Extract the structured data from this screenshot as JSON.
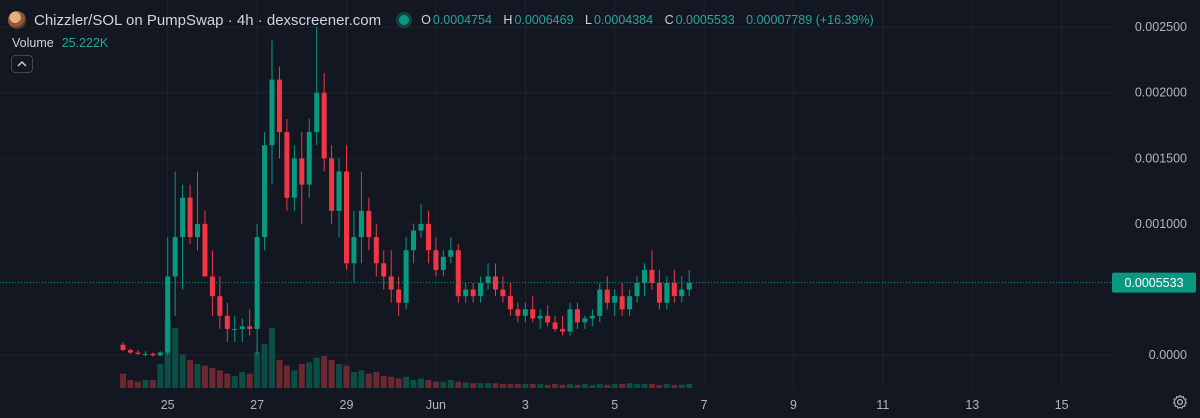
{
  "header": {
    "symbol_line": "Chizzler/SOL on PumpSwap · 4h · dexscreener.com",
    "ohlc": {
      "o_label": "O",
      "o_value": "0.0004754",
      "h_label": "H",
      "h_value": "0.0006469",
      "l_label": "L",
      "l_value": "0.0004384",
      "c_label": "C",
      "c_value": "0.0005533",
      "change": "0.00007789 (+16.39%)"
    },
    "volume_label": "Volume",
    "volume_value": "25.222K"
  },
  "price_tag": "0.0005533",
  "colors": {
    "background": "#131722",
    "up": "#089981",
    "down": "#f23645",
    "up_volume": "#0b4e45",
    "down_volume": "#6b2831",
    "text": "#b2b5be"
  },
  "chart_data": {
    "type": "candlestick",
    "y_ticks": [
      "0.002500",
      "0.002000",
      "0.001500",
      "0.001000",
      "0.0000"
    ],
    "y_tick_values": [
      0.0025,
      0.002,
      0.0015,
      0.001,
      0.0
    ],
    "ylim": [
      -0.00025,
      0.0026
    ],
    "x_ticks": [
      "25",
      "27",
      "29",
      "Jun",
      "3",
      "5",
      "7",
      "9",
      "11",
      "13",
      "15"
    ],
    "x_tick_index": [
      6,
      18,
      30,
      42,
      54,
      66,
      78,
      90,
      102,
      114,
      126
    ],
    "last_close": 0.0005533,
    "candles": [
      [
        8e-05,
        0.0001,
        3e-05,
        4e-05
      ],
      [
        4e-05,
        5e-05,
        1e-05,
        2e-05
      ],
      [
        2e-05,
        4e-05,
        0.0,
        1e-05
      ],
      [
        1e-05,
        3e-05,
        -1e-05,
        1e-05
      ],
      [
        1e-05,
        2e-05,
        -1e-05,
        0.0
      ],
      [
        0.0,
        3e-05,
        -1e-05,
        2e-05
      ],
      [
        2e-05,
        0.0009,
        0.0,
        0.0006
      ],
      [
        0.0006,
        0.0014,
        0.0003,
        0.0009
      ],
      [
        0.0009,
        0.0013,
        0.0005,
        0.0012
      ],
      [
        0.0012,
        0.0013,
        0.00085,
        0.0009
      ],
      [
        0.0009,
        0.0014,
        0.0008,
        0.001
      ],
      [
        0.001,
        0.0011,
        0.0006,
        0.0006
      ],
      [
        0.0006,
        0.0008,
        0.0003,
        0.00045
      ],
      [
        0.00045,
        0.0006,
        0.0002,
        0.0003
      ],
      [
        0.0003,
        0.0004,
        0.0001,
        0.0002
      ],
      [
        0.0002,
        0.0003,
        0.0001,
        0.0002
      ],
      [
        0.0002,
        0.00028,
        0.0001,
        0.00022
      ],
      [
        0.00022,
        0.00035,
        0.00015,
        0.0002
      ],
      [
        0.0002,
        0.001,
        0.0,
        0.0009
      ],
      [
        0.0009,
        0.0017,
        0.0008,
        0.0016
      ],
      [
        0.0016,
        0.0024,
        0.0013,
        0.0021
      ],
      [
        0.0021,
        0.0022,
        0.0015,
        0.0017
      ],
      [
        0.0017,
        0.0018,
        0.0011,
        0.0012
      ],
      [
        0.0012,
        0.0016,
        0.0011,
        0.0015
      ],
      [
        0.0015,
        0.0017,
        0.001,
        0.0013
      ],
      [
        0.0013,
        0.0018,
        0.0012,
        0.0017
      ],
      [
        0.0017,
        0.0025,
        0.0016,
        0.002
      ],
      [
        0.002,
        0.00215,
        0.0014,
        0.0015
      ],
      [
        0.0015,
        0.0016,
        0.001,
        0.0011
      ],
      [
        0.0011,
        0.0015,
        0.0009,
        0.0014
      ],
      [
        0.0014,
        0.0016,
        0.00065,
        0.0007
      ],
      [
        0.0007,
        0.0011,
        0.00055,
        0.0009
      ],
      [
        0.0009,
        0.0014,
        0.0007,
        0.0011
      ],
      [
        0.0011,
        0.0012,
        0.0008,
        0.0009
      ],
      [
        0.0009,
        0.001,
        0.0006,
        0.0007
      ],
      [
        0.0007,
        0.0008,
        0.0005,
        0.0006
      ],
      [
        0.0006,
        0.0008,
        0.0004,
        0.0005
      ],
      [
        0.0005,
        0.0006,
        0.0003,
        0.0004
      ],
      [
        0.0004,
        0.0009,
        0.00035,
        0.0008
      ],
      [
        0.0008,
        0.001,
        0.0007,
        0.00095
      ],
      [
        0.00095,
        0.00115,
        0.0009,
        0.001
      ],
      [
        0.001,
        0.0011,
        0.0007,
        0.0008
      ],
      [
        0.0008,
        0.0009,
        0.0006,
        0.00065
      ],
      [
        0.00065,
        0.0008,
        0.0006,
        0.00075
      ],
      [
        0.00075,
        0.0009,
        0.0007,
        0.0008
      ],
      [
        0.0008,
        0.00085,
        0.0004,
        0.00045
      ],
      [
        0.00045,
        0.00055,
        0.0004,
        0.0005
      ],
      [
        0.0005,
        0.00055,
        0.0004,
        0.00045
      ],
      [
        0.00045,
        0.0006,
        0.0004,
        0.00055
      ],
      [
        0.00055,
        0.0007,
        0.0005,
        0.0006
      ],
      [
        0.0006,
        0.0007,
        0.00045,
        0.0005
      ],
      [
        0.0005,
        0.0006,
        0.0004,
        0.00045
      ],
      [
        0.00045,
        0.00055,
        0.0003,
        0.00035
      ],
      [
        0.00035,
        0.0004,
        0.00025,
        0.0003
      ],
      [
        0.0003,
        0.0004,
        0.00025,
        0.00035
      ],
      [
        0.00035,
        0.00045,
        0.00025,
        0.00028
      ],
      [
        0.00028,
        0.00035,
        0.0002,
        0.0003
      ],
      [
        0.0003,
        0.00038,
        0.00022,
        0.00025
      ],
      [
        0.00025,
        0.0003,
        0.00018,
        0.0002
      ],
      [
        0.0002,
        0.0003,
        0.00015,
        0.00018
      ],
      [
        0.00018,
        0.0004,
        0.00015,
        0.00035
      ],
      [
        0.00035,
        0.0004,
        0.0002,
        0.00025
      ],
      [
        0.00025,
        0.0003,
        0.0002,
        0.00028
      ],
      [
        0.00028,
        0.00035,
        0.00022,
        0.0003
      ],
      [
        0.0003,
        0.00055,
        0.00025,
        0.0005
      ],
      [
        0.0005,
        0.0006,
        0.00035,
        0.0004
      ],
      [
        0.0004,
        0.0005,
        0.0003,
        0.00045
      ],
      [
        0.00045,
        0.00055,
        0.0003,
        0.00035
      ],
      [
        0.00035,
        0.0005,
        0.0003,
        0.00045
      ],
      [
        0.00045,
        0.0006,
        0.0004,
        0.00055
      ],
      [
        0.00055,
        0.0007,
        0.00045,
        0.00065
      ],
      [
        0.00065,
        0.0008,
        0.0005,
        0.00055
      ],
      [
        0.00055,
        0.00065,
        0.00035,
        0.0004
      ],
      [
        0.0004,
        0.0006,
        0.00035,
        0.00055
      ],
      [
        0.00055,
        0.00065,
        0.0004,
        0.00045
      ],
      [
        0.00045,
        0.0006,
        0.0004,
        0.0005
      ],
      [
        0.0005,
        0.00065,
        0.00045,
        0.00055
      ]
    ],
    "volumes": [
      0.18,
      0.1,
      0.08,
      0.1,
      0.1,
      0.3,
      0.85,
      0.75,
      0.42,
      0.35,
      0.3,
      0.28,
      0.25,
      0.22,
      0.18,
      0.15,
      0.2,
      0.18,
      0.45,
      0.55,
      0.75,
      0.35,
      0.28,
      0.22,
      0.3,
      0.32,
      0.38,
      0.4,
      0.35,
      0.3,
      0.28,
      0.2,
      0.22,
      0.18,
      0.2,
      0.15,
      0.14,
      0.12,
      0.14,
      0.1,
      0.12,
      0.1,
      0.08,
      0.08,
      0.1,
      0.08,
      0.07,
      0.06,
      0.06,
      0.06,
      0.06,
      0.05,
      0.05,
      0.05,
      0.05,
      0.05,
      0.05,
      0.04,
      0.05,
      0.04,
      0.05,
      0.04,
      0.05,
      0.04,
      0.05,
      0.04,
      0.05,
      0.05,
      0.06,
      0.05,
      0.05,
      0.05,
      0.04,
      0.05,
      0.04,
      0.04,
      0.05
    ]
  }
}
